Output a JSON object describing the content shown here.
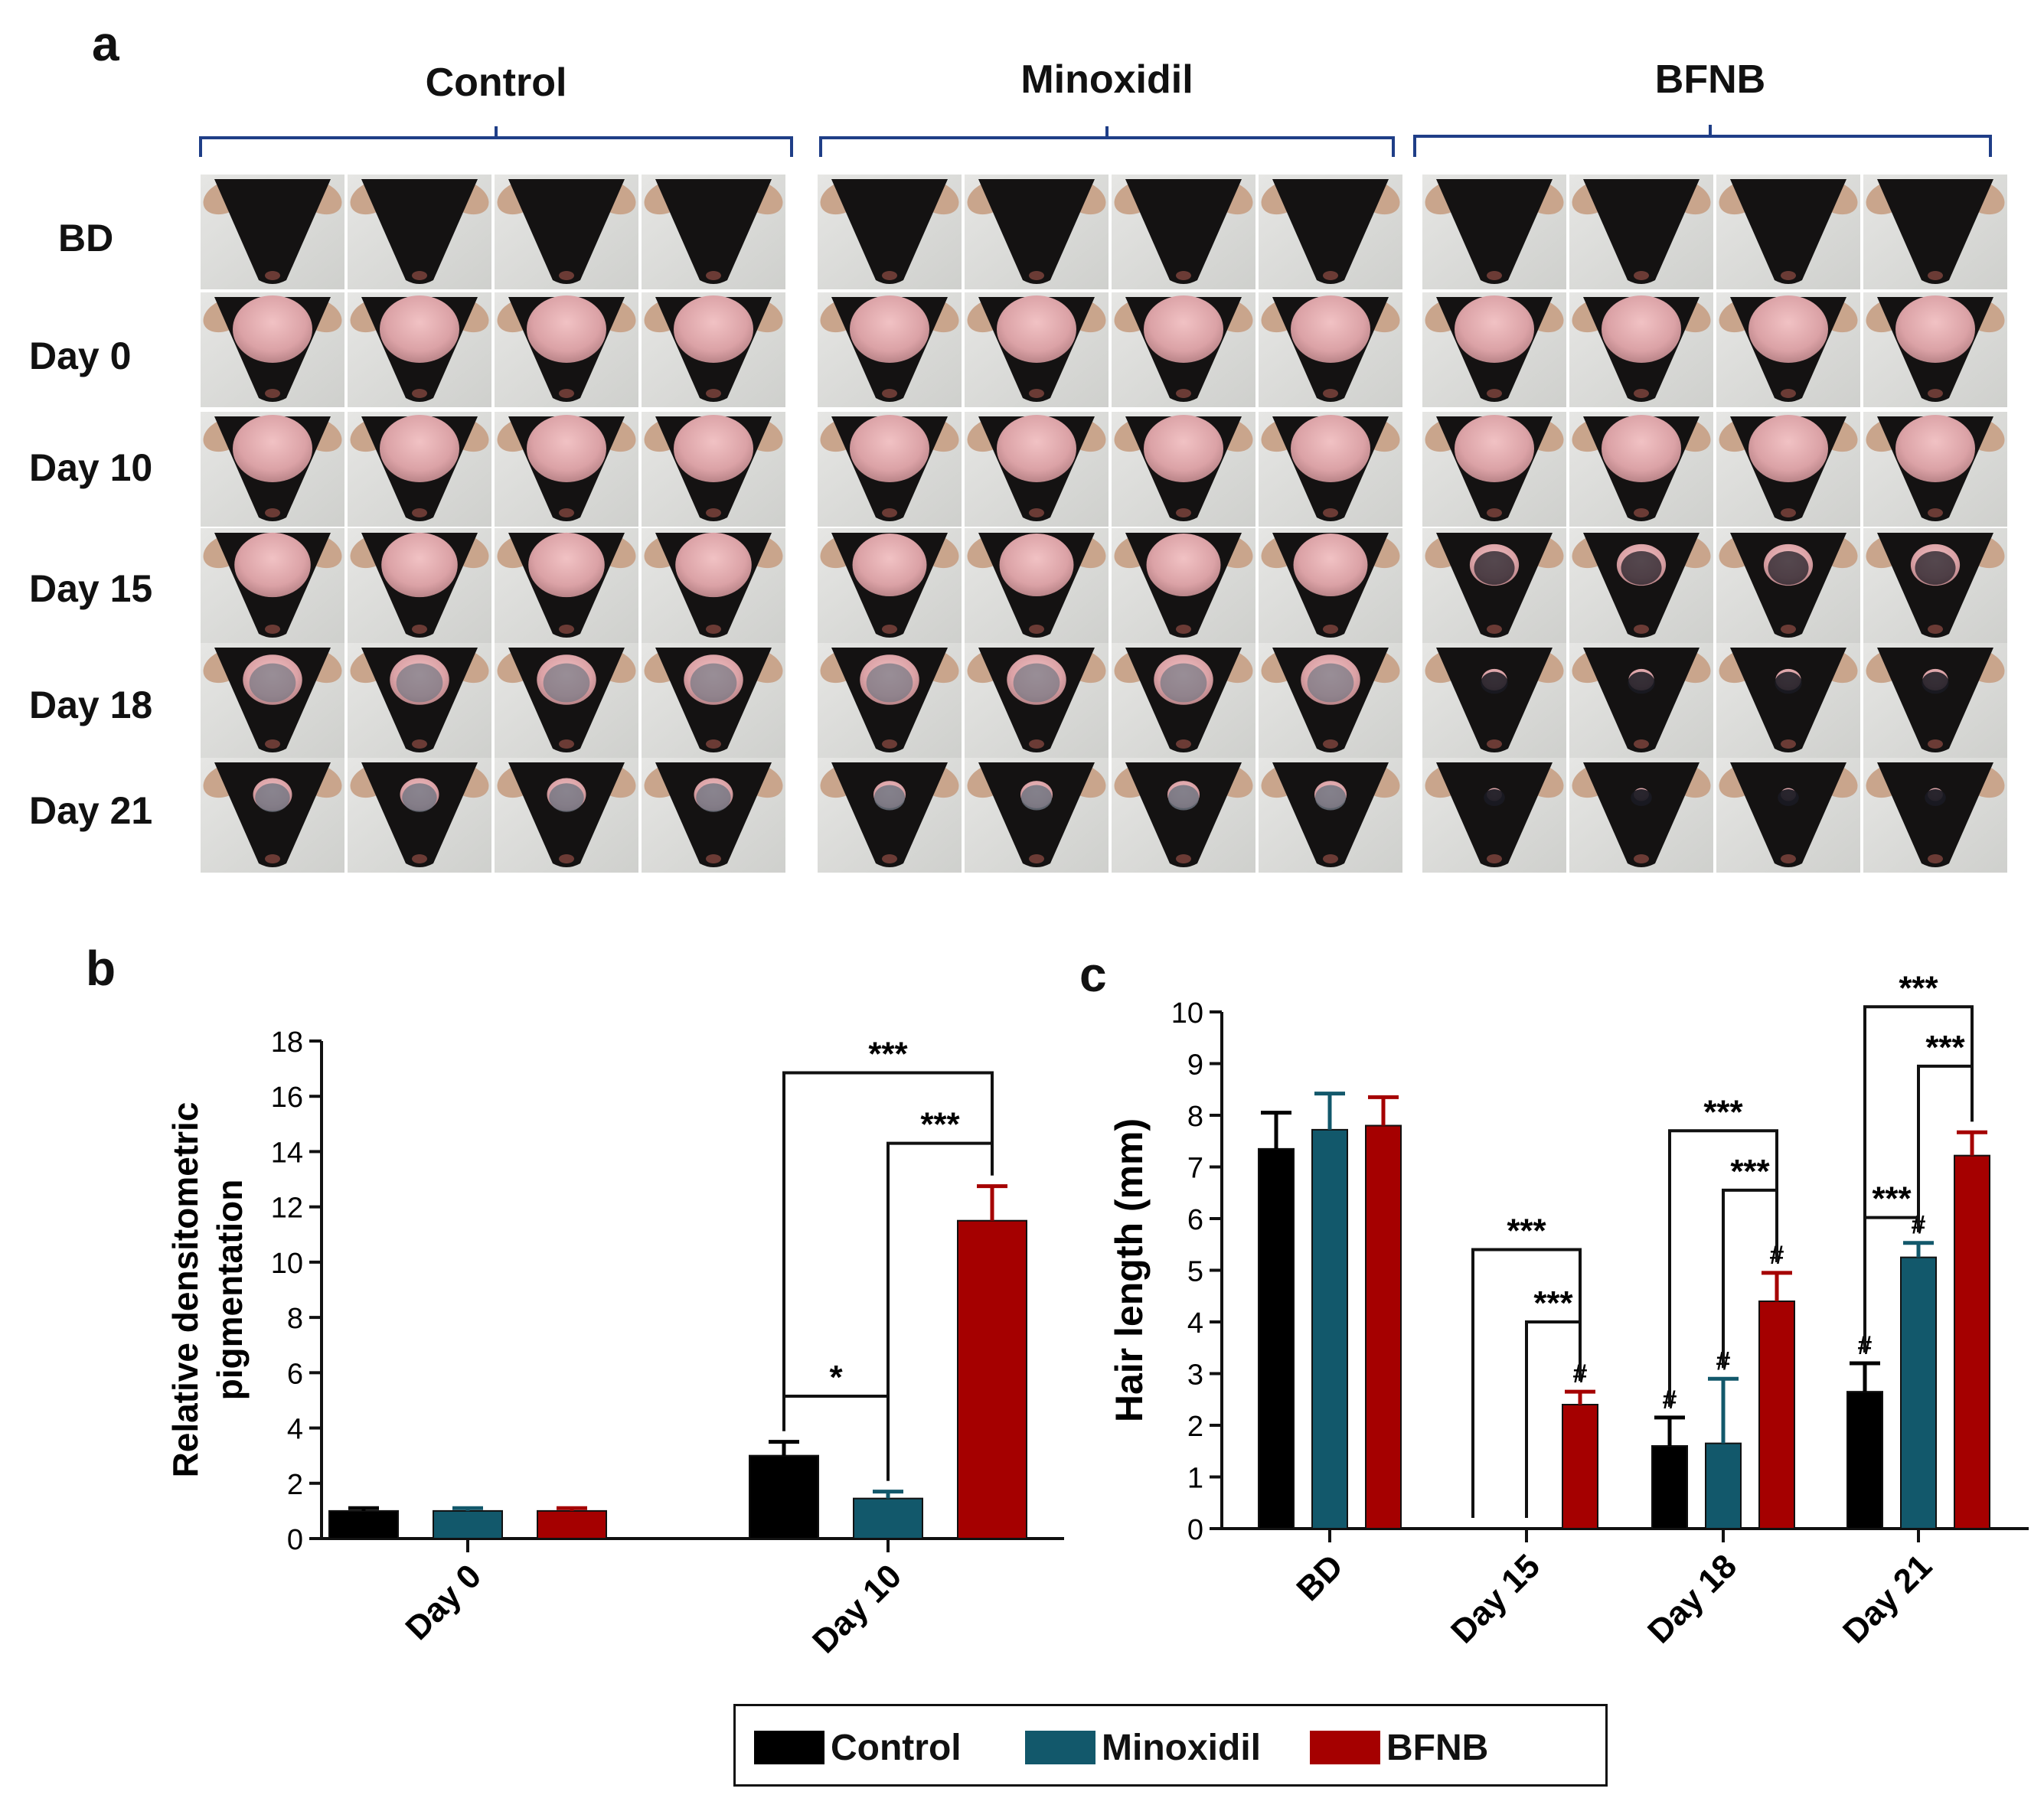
{
  "panel_a": {
    "letter": "a",
    "groups": [
      "Control",
      "Minoxidil",
      "BFNB"
    ],
    "rows": [
      "BD",
      "Day 0",
      "Day 10",
      "Day 15",
      "Day 18",
      "Day 21"
    ],
    "cells_per_group": 4,
    "hair_cover": [
      [
        0.97,
        0.97,
        0.97
      ],
      [
        0.0,
        0.0,
        0.0
      ],
      [
        0.0,
        0.0,
        0.0
      ],
      [
        0.05,
        0.08,
        0.45
      ],
      [
        0.3,
        0.3,
        0.8
      ],
      [
        0.6,
        0.7,
        0.95
      ]
    ]
  },
  "panel_b": {
    "letter": "b"
  },
  "panel_c": {
    "letter": "c"
  },
  "legend": {
    "items": [
      {
        "label": "Control",
        "color": "#000000"
      },
      {
        "label": "Minoxidil",
        "color": "#12586b"
      },
      {
        "label": "BFNB",
        "color": "#a50000"
      }
    ]
  },
  "chart_data": [
    {
      "type": "bar",
      "panel": "b",
      "title": "",
      "xlabel": "",
      "ylabel": "Relative densitometric pigmentation",
      "ylim": [
        0,
        18
      ],
      "yticks": [
        0,
        2,
        4,
        6,
        8,
        10,
        12,
        14,
        16,
        18
      ],
      "categories": [
        "Day 0",
        "Day 10"
      ],
      "series": [
        {
          "name": "Control",
          "color": "#000000",
          "values": [
            1.0,
            3.0
          ],
          "errors": [
            0.1,
            0.5
          ]
        },
        {
          "name": "Minoxidil",
          "color": "#12586b",
          "values": [
            1.0,
            1.45
          ],
          "errors": [
            0.1,
            0.25
          ]
        },
        {
          "name": "BFNB",
          "color": "#a50000",
          "values": [
            1.0,
            11.5
          ],
          "errors": [
            0.1,
            1.25
          ]
        }
      ],
      "annotations": [
        {
          "category": 1,
          "from": 0,
          "to": 2,
          "label": "***",
          "level": 16.85
        },
        {
          "category": 1,
          "from": 1,
          "to": 2,
          "label": "***",
          "level": 14.3
        },
        {
          "category": 1,
          "from": 0,
          "to": 1,
          "label": "*",
          "level": 5.15
        }
      ]
    },
    {
      "type": "bar",
      "panel": "c",
      "title": "",
      "xlabel": "",
      "ylabel": "Hair length (mm)",
      "ylim": [
        0,
        10
      ],
      "yticks": [
        0,
        1,
        2,
        3,
        4,
        5,
        6,
        7,
        8,
        9,
        10
      ],
      "categories": [
        "BD",
        "Day 15",
        "Day 18",
        "Day 21"
      ],
      "series": [
        {
          "name": "Control",
          "color": "#000000",
          "values": [
            7.35,
            0.0,
            1.6,
            2.65
          ],
          "errors": [
            0.7,
            0,
            0.55,
            0.55
          ],
          "marks": [
            "",
            "",
            "#",
            "#"
          ]
        },
        {
          "name": "Minoxidil",
          "color": "#12586b",
          "values": [
            7.72,
            0.0,
            1.65,
            5.25
          ],
          "errors": [
            0.7,
            0,
            1.25,
            0.28
          ],
          "marks": [
            "",
            "",
            "#",
            "#"
          ]
        },
        {
          "name": "BFNB",
          "color": "#a50000",
          "values": [
            7.8,
            2.4,
            4.4,
            7.22
          ],
          "errors": [
            0.55,
            0.25,
            0.55,
            0.45
          ],
          "marks": [
            "",
            "#",
            "#",
            ""
          ]
        }
      ],
      "annotations": [
        {
          "category": 1,
          "from": 0,
          "to": 2,
          "label": "***",
          "level": 5.4
        },
        {
          "category": 1,
          "from": 1,
          "to": 2,
          "label": "***",
          "level": 4.0
        },
        {
          "category": 2,
          "from": 0,
          "to": 2,
          "label": "***",
          "level": 7.7
        },
        {
          "category": 2,
          "from": 1,
          "to": 2,
          "label": "***",
          "level": 6.55
        },
        {
          "category": 3,
          "from": 0,
          "to": 2,
          "label": "***",
          "level": 10.1
        },
        {
          "category": 3,
          "from": 1,
          "to": 2,
          "label": "***",
          "level": 8.95
        },
        {
          "category": 3,
          "from": 0,
          "to": 1,
          "label": "***",
          "level": 6.02
        }
      ]
    }
  ]
}
